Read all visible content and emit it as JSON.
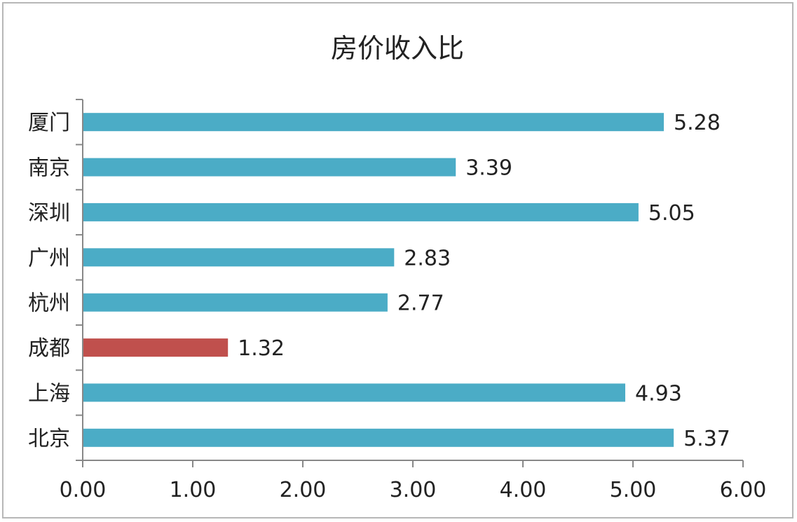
{
  "chart_data": {
    "type": "bar",
    "orientation": "horizontal",
    "title": "房价收入比",
    "categories": [
      "厦门",
      "南京",
      "深圳",
      "广州",
      "杭州",
      "成都",
      "上海",
      "北京"
    ],
    "values": [
      5.28,
      3.39,
      5.05,
      2.83,
      2.77,
      1.32,
      4.93,
      5.37
    ],
    "value_labels": [
      "5.28",
      "3.39",
      "5.05",
      "2.83",
      "2.77",
      "1.32",
      "4.93",
      "5.37"
    ],
    "highlight_index": 5,
    "xlim": [
      0,
      6
    ],
    "x_ticks": [
      0,
      1,
      2,
      3,
      4,
      5,
      6
    ],
    "x_tick_labels": [
      "0.00",
      "1.00",
      "2.00",
      "3.00",
      "4.00",
      "5.00",
      "6.00"
    ],
    "grid": false,
    "legend": "none",
    "colors": {
      "bar": "#4bacc6",
      "highlight": "#c0504d",
      "axis": "#888888"
    }
  }
}
